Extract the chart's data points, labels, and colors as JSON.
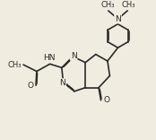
{
  "background_color": "#f0ece0",
  "line_color": "#2a2a2a",
  "line_width": 1.2,
  "dbo": 0.045,
  "font_size": 6.5,
  "figsize": [
    1.74,
    1.56
  ],
  "dpi": 100,
  "xlim": [
    0,
    10
  ],
  "ylim": [
    0,
    9
  ]
}
